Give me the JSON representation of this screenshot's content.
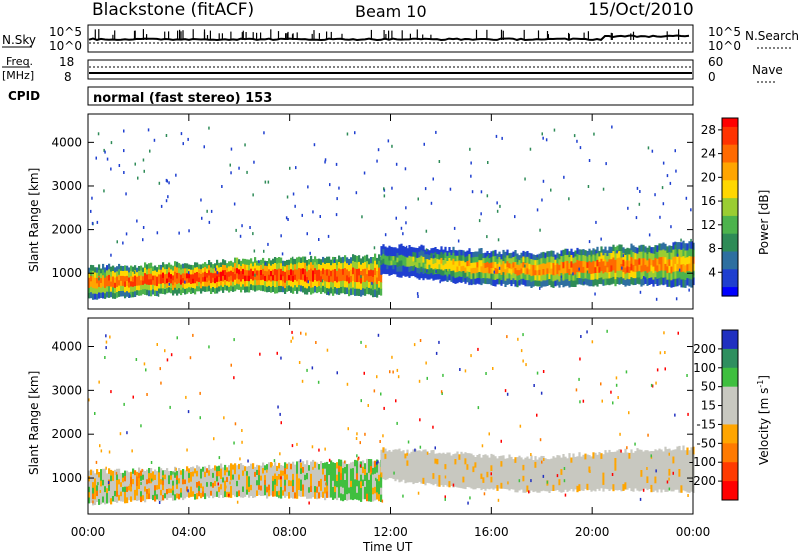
{
  "header": {
    "station": "Blackstone (fitACF)",
    "beam": "Beam 10",
    "date": "15/Oct/2010"
  },
  "top_panels": {
    "nsky": {
      "left_label": "N.Sky",
      "left_ticks": [
        "10^5",
        "10^0"
      ],
      "right_ticks": [
        "10^5",
        "10^0"
      ],
      "right_label": "N.Search"
    },
    "freq": {
      "left_label_line1": "Freq.",
      "left_label_line2": "[MHz]",
      "left_ticks": [
        "18",
        "8"
      ],
      "right_ticks": [
        "60",
        "0"
      ],
      "right_label": "Nave"
    },
    "cpid": {
      "label": "CPID",
      "text": "normal (fast stereo) 153"
    }
  },
  "chart_data": [
    {
      "type": "heatmap",
      "title": "",
      "xlabel": "Time UT",
      "ylabel": "Slant Range [km]",
      "x_ticks": [
        "00:00",
        "04:00",
        "08:00",
        "12:00",
        "16:00",
        "20:00",
        "00:00"
      ],
      "xlim_hours": [
        0,
        24
      ],
      "ylim": [
        180,
        4650
      ],
      "y_ticks": [
        1000,
        2000,
        3000,
        4000
      ],
      "colorbar": {
        "label": "Power [dB]",
        "ticks": [
          4,
          8,
          12,
          16,
          20,
          24,
          28
        ],
        "range": [
          0,
          30
        ],
        "colors": [
          "#0000ff",
          "#1f3fd0",
          "#2e6fa0",
          "#2e8b57",
          "#4db34d",
          "#9acd32",
          "#ffd700",
          "#ffa500",
          "#ff6a00",
          "#ff3300",
          "#ff0000"
        ]
      },
      "bands": [
        {
          "name": "main_echo",
          "start_hour": 0,
          "end_hour": 11.6,
          "range_low": [
            420,
            520,
            600,
            560,
            480
          ],
          "range_high": [
            1150,
            1200,
            1300,
            1350,
            1400
          ],
          "power_db": [
            22,
            26,
            27,
            26,
            24
          ]
        },
        {
          "name": "main_echo",
          "start_hour": 11.6,
          "end_hour": 24,
          "range_low": [
            1000,
            780,
            700,
            750,
            700
          ],
          "range_high": [
            1650,
            1550,
            1450,
            1600,
            1700
          ],
          "power_db": [
            10,
            20,
            22,
            24,
            20
          ]
        }
      ]
    },
    {
      "type": "heatmap",
      "title": "",
      "xlabel": "Time UT",
      "ylabel": "Slant Range [km]",
      "x_ticks": [
        "00:00",
        "04:00",
        "08:00",
        "12:00",
        "16:00",
        "20:00",
        "00:00"
      ],
      "xlim_hours": [
        0,
        24
      ],
      "ylim": [
        180,
        4650
      ],
      "y_ticks": [
        1000,
        2000,
        3000,
        4000
      ],
      "colorbar": {
        "label": "Velocity [m s^-1]",
        "ticks": [
          200,
          100,
          50,
          15,
          -15,
          -50,
          -100,
          -200
        ],
        "range": [
          -250,
          250
        ],
        "colors": [
          "#2030c0",
          "#2f8f5f",
          "#3fbf3f",
          "#c8c8c0",
          "#ffa500",
          "#ff7a00",
          "#ff3a00",
          "#ff0000"
        ]
      },
      "bands": [
        {
          "name": "ground_scatter",
          "start_hour": 0,
          "end_hour": 11.6,
          "range_low": [
            420,
            520,
            600,
            560,
            480
          ],
          "range_high": [
            1150,
            1200,
            1300,
            1350,
            1400
          ],
          "velocity_m_s": [
            -30,
            -10,
            0,
            20,
            40
          ]
        },
        {
          "name": "ground_scatter",
          "start_hour": 11.6,
          "end_hour": 24,
          "range_low": [
            1000,
            780,
            700,
            750,
            700
          ],
          "range_high": [
            1650,
            1550,
            1450,
            1600,
            1700
          ],
          "velocity_m_s": [
            0,
            0,
            0,
            0,
            0
          ]
        }
      ]
    }
  ]
}
